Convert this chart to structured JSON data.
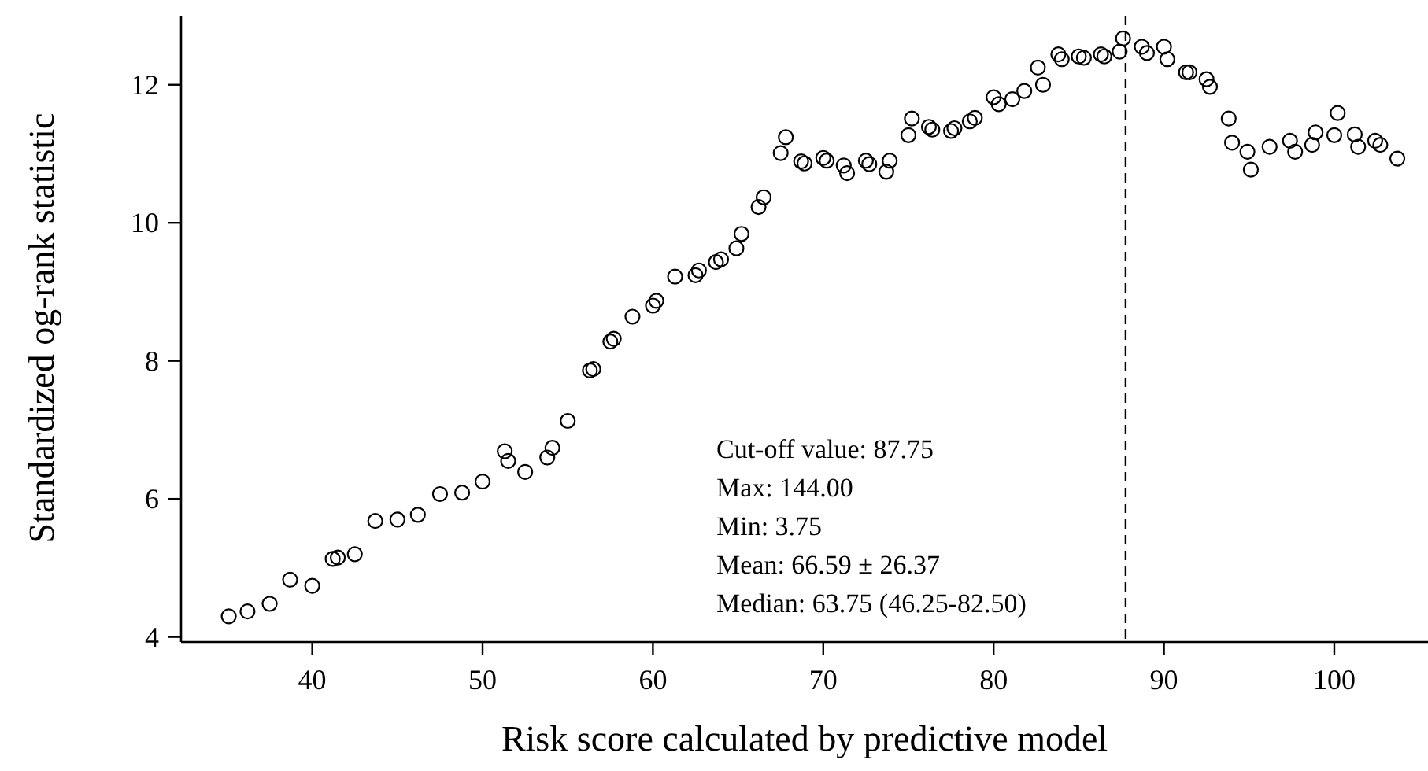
{
  "chart_data": {
    "type": "scatter",
    "xlabel": "Risk score calculated by predictive model",
    "ylabel": "Standardized og-rank statistic",
    "x": [
      35.1,
      36.2,
      37.5,
      38.7,
      40.0,
      41.2,
      41.5,
      42.5,
      43.7,
      45.0,
      46.2,
      47.5,
      48.8,
      50.0,
      51.3,
      51.5,
      52.5,
      53.8,
      54.1,
      55.0,
      56.3,
      56.5,
      57.5,
      57.7,
      58.8,
      60.0,
      60.2,
      61.3,
      62.5,
      62.7,
      63.7,
      64.0,
      64.9,
      65.2,
      66.2,
      66.5,
      67.5,
      67.8,
      68.7,
      68.9,
      70.0,
      70.2,
      71.2,
      71.4,
      72.5,
      72.7,
      73.7,
      73.9,
      75.0,
      75.2,
      76.2,
      76.4,
      77.5,
      77.7,
      78.6,
      78.9,
      80.0,
      80.3,
      81.1,
      81.8,
      82.6,
      82.9,
      83.8,
      84.0,
      85.0,
      85.3,
      86.3,
      86.5,
      87.4,
      87.6,
      88.7,
      89.0,
      90.0,
      90.2,
      91.3,
      91.5,
      92.5,
      92.7,
      93.8,
      94.0,
      94.9,
      95.1,
      96.2,
      97.4,
      97.7,
      98.7,
      98.9,
      100.0,
      100.2,
      101.2,
      101.4,
      102.4,
      102.7,
      103.7
    ],
    "series": [
      {
        "color": "#000000",
        "values": [
          4.3,
          4.37,
          4.48,
          4.83,
          4.74,
          5.13,
          5.15,
          5.2,
          5.68,
          5.7,
          5.77,
          6.07,
          6.09,
          6.25,
          6.69,
          6.55,
          6.39,
          6.6,
          6.74,
          7.13,
          7.86,
          7.88,
          8.28,
          8.32,
          8.64,
          8.8,
          8.87,
          9.22,
          9.24,
          9.31,
          9.43,
          9.47,
          9.63,
          9.84,
          10.23,
          10.37,
          11.01,
          11.24,
          10.89,
          10.86,
          10.94,
          10.9,
          10.83,
          10.72,
          10.9,
          10.85,
          10.74,
          10.9,
          11.27,
          11.51,
          11.39,
          11.35,
          11.33,
          11.37,
          11.47,
          11.52,
          11.82,
          11.72,
          11.79,
          11.91,
          12.25,
          12.0,
          12.44,
          12.37,
          12.41,
          12.39,
          12.44,
          12.41,
          12.48,
          12.67,
          12.55,
          12.46,
          12.55,
          12.37,
          12.18,
          12.18,
          12.08,
          11.97,
          11.51,
          11.16,
          11.03,
          10.77,
          11.1,
          11.19,
          11.03,
          11.13,
          11.31,
          11.27,
          11.59,
          11.28,
          11.1,
          11.19,
          11.13,
          10.93
        ]
      }
    ],
    "xlim": [
      32.3,
      105.5
    ],
    "ylim": [
      3.95,
      13.0
    ],
    "xticks": [
      40,
      50,
      60,
      70,
      80,
      90,
      100
    ],
    "yticks": [
      4,
      6,
      8,
      10,
      12
    ],
    "marker": "circle",
    "ref_lines": [
      {
        "axis": "x",
        "value": 87.75,
        "line_style": "dashed"
      }
    ],
    "annotations": [
      "Cut-off value: 87.75",
      "Max: 144.00",
      "Min: 3.75",
      "Mean:  66.59 ± 26.37",
      "Median: 63.75 (46.25-82.50)"
    ]
  }
}
